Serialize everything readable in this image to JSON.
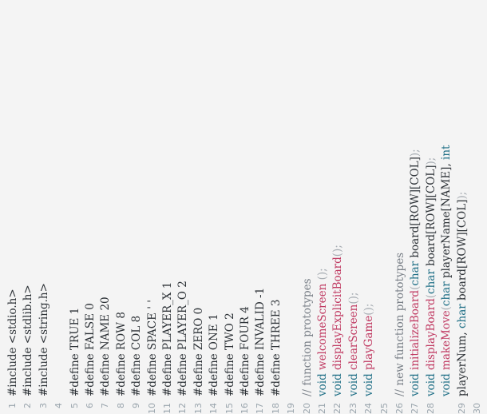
{
  "colors": {
    "background": "#f4f4f4",
    "keyword": "#1f6f86",
    "function": "#c03a62",
    "comment": "#7a8088",
    "line_number": "#9aa5ad",
    "text": "#2e3338"
  },
  "lines": [
    {
      "number": "1",
      "tokens": [
        {
          "t": "#include <stdio.h>",
          "c": "tx"
        }
      ]
    },
    {
      "number": "2",
      "tokens": [
        {
          "t": "#include <stdlib.h>",
          "c": "tx"
        }
      ]
    },
    {
      "number": "3",
      "tokens": [
        {
          "t": "#include <string.h>",
          "c": "tx"
        }
      ]
    },
    {
      "number": "4",
      "tokens": []
    },
    {
      "number": "5",
      "tokens": [
        {
          "t": "#define TRUE 1",
          "c": "tx"
        }
      ]
    },
    {
      "number": "6",
      "tokens": [
        {
          "t": "#define FALSE 0",
          "c": "tx"
        }
      ]
    },
    {
      "number": "7",
      "tokens": [
        {
          "t": "#define NAME 20",
          "c": "tx"
        }
      ]
    },
    {
      "number": "8",
      "tokens": [
        {
          "t": "#define ROW 8",
          "c": "tx"
        }
      ]
    },
    {
      "number": "9",
      "tokens": [
        {
          "t": "#define COL 8",
          "c": "tx"
        }
      ]
    },
    {
      "number": "10",
      "tokens": [
        {
          "t": "#define SPACE ' '",
          "c": "tx"
        }
      ]
    },
    {
      "number": "11",
      "tokens": [
        {
          "t": "#define PLAYER_X 1",
          "c": "tx"
        }
      ]
    },
    {
      "number": "12",
      "tokens": [
        {
          "t": "#define PLAYER_O 2",
          "c": "tx"
        }
      ]
    },
    {
      "number": "13",
      "tokens": [
        {
          "t": "#define ZERO 0",
          "c": "tx"
        }
      ]
    },
    {
      "number": "14",
      "tokens": [
        {
          "t": "#define ONE 1",
          "c": "tx"
        }
      ]
    },
    {
      "number": "15",
      "tokens": [
        {
          "t": "#define TWO 2",
          "c": "tx"
        }
      ]
    },
    {
      "number": "16",
      "tokens": [
        {
          "t": "#define FOUR 4",
          "c": "tx"
        }
      ]
    },
    {
      "number": "17",
      "tokens": [
        {
          "t": "#define INVALID -1",
          "c": "tx"
        }
      ]
    },
    {
      "number": "18",
      "tokens": [
        {
          "t": "#define THREE 3",
          "c": "tx"
        }
      ]
    },
    {
      "number": "19",
      "tokens": []
    },
    {
      "number": "20",
      "tokens": [
        {
          "t": "// function prototypes",
          "c": "cm"
        }
      ]
    },
    {
      "number": "21",
      "tokens": [
        {
          "t": "void",
          "c": "kw"
        },
        {
          "t": " ",
          "c": "tx"
        },
        {
          "t": "welcomeScreen",
          "c": "fn"
        },
        {
          "t": " ();",
          "c": "pun"
        }
      ]
    },
    {
      "number": "22",
      "tokens": [
        {
          "t": "void",
          "c": "kw"
        },
        {
          "t": " ",
          "c": "tx"
        },
        {
          "t": "displayExplicitBoard",
          "c": "fn"
        },
        {
          "t": "();",
          "c": "pun"
        }
      ]
    },
    {
      "number": "23",
      "tokens": [
        {
          "t": "void",
          "c": "kw"
        },
        {
          "t": " ",
          "c": "tx"
        },
        {
          "t": "clearScreen",
          "c": "fn"
        },
        {
          "t": "();",
          "c": "pun"
        }
      ]
    },
    {
      "number": "24",
      "tokens": [
        {
          "t": "void",
          "c": "kw"
        },
        {
          "t": " ",
          "c": "tx"
        },
        {
          "t": "playGame",
          "c": "fn"
        },
        {
          "t": "();",
          "c": "pun"
        }
      ]
    },
    {
      "number": "25",
      "tokens": []
    },
    {
      "number": "26",
      "tokens": [
        {
          "t": "// new function prototypes",
          "c": "cm"
        }
      ]
    },
    {
      "number": "27",
      "tokens": [
        {
          "t": "void",
          "c": "kw"
        },
        {
          "t": " ",
          "c": "tx"
        },
        {
          "t": "initializeBoard",
          "c": "fn"
        },
        {
          "t": "(",
          "c": "pun"
        },
        {
          "t": "char",
          "c": "kw"
        },
        {
          "t": " board[ROW][COL]",
          "c": "tx"
        },
        {
          "t": ");",
          "c": "pun"
        }
      ]
    },
    {
      "number": "28",
      "tokens": [
        {
          "t": "void",
          "c": "kw"
        },
        {
          "t": " ",
          "c": "tx"
        },
        {
          "t": "displayBoard",
          "c": "fn"
        },
        {
          "t": "(",
          "c": "pun"
        },
        {
          "t": "char",
          "c": "kw"
        },
        {
          "t": " board[ROW][COL]",
          "c": "tx"
        },
        {
          "t": ");",
          "c": "pun"
        }
      ]
    },
    {
      "number": "",
      "tokens": [
        {
          "t": "void",
          "c": "kw"
        },
        {
          "t": " ",
          "c": "tx"
        },
        {
          "t": "makeMove",
          "c": "fn"
        },
        {
          "t": "(",
          "c": "pun"
        },
        {
          "t": "char",
          "c": "kw"
        },
        {
          "t": " playerName[NAME], ",
          "c": "tx"
        },
        {
          "t": "int",
          "c": "kw"
        }
      ]
    },
    {
      "number": "29",
      "tokens": [
        {
          "t": "playerNum, ",
          "c": "tx"
        },
        {
          "t": "char",
          "c": "kw"
        },
        {
          "t": " board[ROW][COL]",
          "c": "tx"
        },
        {
          "t": ");",
          "c": "pun"
        }
      ]
    },
    {
      "number": "30",
      "tokens": []
    }
  ]
}
